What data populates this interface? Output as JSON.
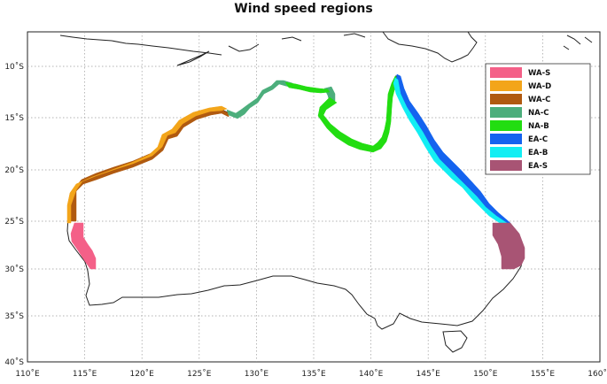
{
  "title": "Wind speed regions",
  "map": {
    "x_ticks": [
      "110˚E",
      "115˚E",
      "120˚E",
      "125˚E",
      "130˚E",
      "135˚E",
      "140˚E",
      "145˚E",
      "150˚E",
      "155˚E",
      "160˚1"
    ],
    "y_ticks": [
      "10˚S",
      "15˚S",
      "20˚S",
      "25˚S",
      "30˚S",
      "35˚S",
      "40˚S"
    ],
    "lon_range": [
      110,
      160
    ],
    "lat_range": [
      -40,
      -7
    ],
    "grid": true
  },
  "legend": {
    "placement": "top-right",
    "items": [
      {
        "label": "WA-S",
        "color": "#f46088"
      },
      {
        "label": "WA-D",
        "color": "#f3a51a"
      },
      {
        "label": "WA-C",
        "color": "#b05a10"
      },
      {
        "label": "NA-C",
        "color": "#4cae7c"
      },
      {
        "label": "NA-B",
        "color": "#22dd11"
      },
      {
        "label": "EA-C",
        "color": "#1463ef"
      },
      {
        "label": "EA-B",
        "color": "#12eef3"
      },
      {
        "label": "EA-S",
        "color": "#a85474"
      }
    ]
  }
}
